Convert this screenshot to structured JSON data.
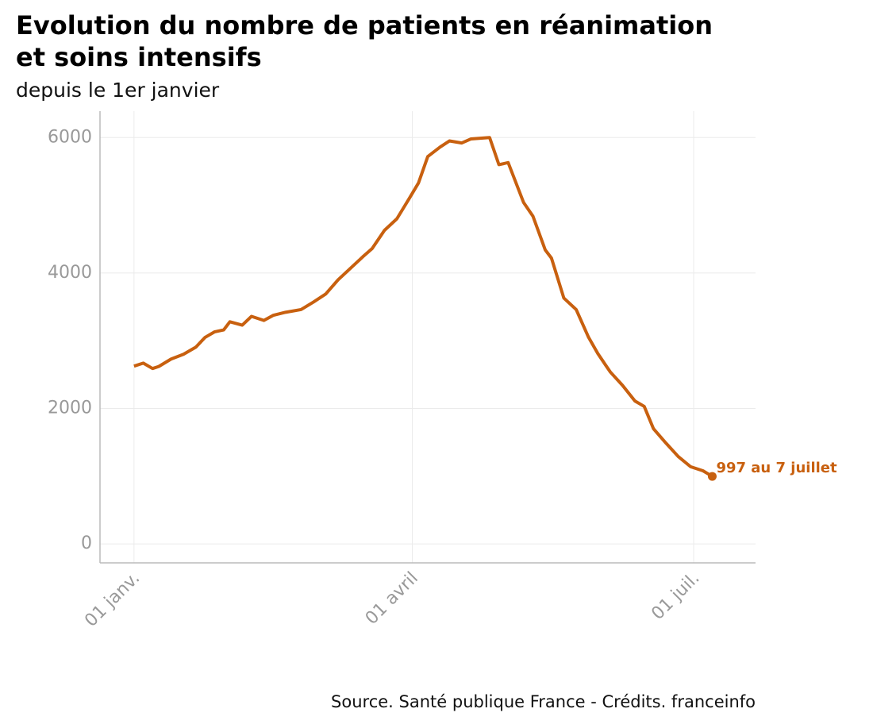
{
  "chart_data": {
    "type": "line",
    "title": "Evolution du nombre de patients en réanimation et soins intensifs",
    "subtitle": "depuis le 1er janvier",
    "caption": "Source. Santé publique France - Crédits. franceinfo",
    "annotation": "997 au 7 juillet",
    "x": [
      0,
      3,
      6,
      8,
      12,
      16,
      20,
      23,
      26,
      29,
      31,
      35,
      38,
      42,
      45,
      49,
      54,
      58,
      62,
      66,
      70,
      74,
      77,
      81,
      85,
      89,
      92,
      95,
      99,
      102,
      106,
      109,
      115,
      118,
      121,
      126,
      129,
      133,
      135,
      139,
      143,
      147,
      150,
      154,
      158,
      162,
      165,
      168,
      172,
      176,
      180,
      184,
      187
    ],
    "series": [
      {
        "name": "patients",
        "color": "#c8600f",
        "values": [
          2625,
          2670,
          2590,
          2620,
          2730,
          2800,
          2906,
          3050,
          3130,
          3160,
          3280,
          3230,
          3360,
          3300,
          3375,
          3420,
          3460,
          3570,
          3690,
          3900,
          4070,
          4240,
          4360,
          4630,
          4800,
          5100,
          5330,
          5720,
          5860,
          5950,
          5920,
          5980,
          6000,
          5600,
          5630,
          5040,
          4840,
          4340,
          4220,
          3630,
          3460,
          3050,
          2810,
          2540,
          2340,
          2110,
          2030,
          1700,
          1490,
          1290,
          1140,
          1080,
          997
        ]
      }
    ],
    "xlim": [
      -11,
      201
    ],
    "xticks": [
      {
        "value": 0,
        "label": "01 janv."
      },
      {
        "value": 90,
        "label": "01 avril"
      },
      {
        "value": 181,
        "label": "01 juil."
      }
    ],
    "ylim": [
      -280,
      6390
    ],
    "yticks": [
      0,
      2000,
      4000,
      6000
    ],
    "grid": true
  }
}
